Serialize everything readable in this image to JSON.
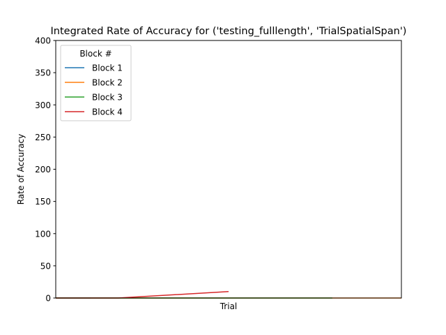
{
  "chart_data": {
    "type": "line",
    "title": "Integrated Rate of Accuracy for ('testing_fulllength', 'TrialSpatialSpan')",
    "xlabel": "Trial",
    "ylabel": "Rate of Accuracy",
    "xlim": [
      0,
      1
    ],
    "ylim": [
      0,
      400
    ],
    "yticks": [
      0,
      50,
      100,
      150,
      200,
      250,
      300,
      350,
      400
    ],
    "grid": false,
    "legend": {
      "title": "Block #",
      "placement": "top-left"
    },
    "series": [
      {
        "name": "Block 1",
        "color": "#1f77b4",
        "x": [
          0,
          0.1
        ],
        "y": [
          0,
          0
        ]
      },
      {
        "name": "Block 2",
        "color": "#ff7f0e",
        "x": [
          0,
          1
        ],
        "y": [
          0,
          0
        ]
      },
      {
        "name": "Block 3",
        "color": "#2ca02c",
        "x": [
          0,
          0.8
        ],
        "y": [
          0,
          0
        ]
      },
      {
        "name": "Block 4",
        "color": "#d62728",
        "x": [
          0,
          0.18,
          0.5
        ],
        "y": [
          0,
          0,
          10
        ]
      }
    ]
  }
}
